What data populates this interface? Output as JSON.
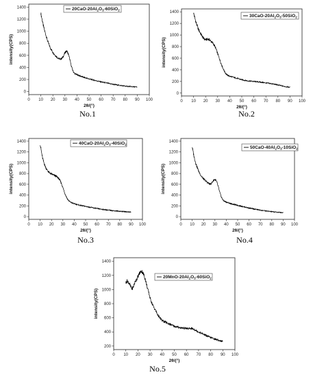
{
  "chart_data": [
    {
      "type": "line",
      "caption": "No.1",
      "legend": "20CaO-20Al2O3-60SiO2",
      "xlabel": "2θ/(°)",
      "ylabel": "intensity(CPS)",
      "xlim": [
        0,
        100
      ],
      "ylim": [
        -50,
        1450
      ],
      "xticks": [
        0,
        10,
        20,
        30,
        40,
        50,
        60,
        70,
        80,
        90,
        100
      ],
      "yticks": [
        0,
        200,
        400,
        600,
        800,
        1000,
        1200,
        1400
      ],
      "x": [
        10,
        11,
        12,
        13,
        14,
        15,
        16,
        17,
        18,
        20,
        22,
        24,
        25,
        26,
        27,
        28,
        29,
        30,
        31,
        32,
        33,
        34,
        35,
        36,
        37,
        38,
        40,
        45,
        50,
        55,
        60,
        65,
        70,
        75,
        80,
        85,
        90
      ],
      "y": [
        1300,
        1200,
        1100,
        1020,
        950,
        880,
        820,
        770,
        720,
        650,
        600,
        560,
        545,
        540,
        545,
        560,
        600,
        640,
        670,
        660,
        610,
        540,
        450,
        380,
        330,
        300,
        280,
        240,
        210,
        185,
        160,
        140,
        120,
        105,
        90,
        82,
        75
      ]
    },
    {
      "type": "line",
      "caption": "No.2",
      "legend": "30CaO-20Al2O3-50SiO2",
      "xlabel": "2θ/(°)",
      "ylabel": "intensity(CPS)",
      "xlim": [
        0,
        100
      ],
      "ylim": [
        -50,
        1450
      ],
      "xticks": [
        0,
        10,
        20,
        30,
        40,
        50,
        60,
        70,
        80,
        90,
        100
      ],
      "yticks": [
        0,
        200,
        400,
        600,
        800,
        1000,
        1200,
        1400
      ],
      "x": [
        10,
        11,
        12,
        13,
        14,
        15,
        16,
        17,
        18,
        19,
        20,
        21,
        22,
        23,
        24,
        25,
        26,
        27,
        28,
        29,
        30,
        31,
        32,
        33,
        34,
        35,
        36,
        37,
        38,
        40,
        45,
        50,
        55,
        60,
        65,
        70,
        75,
        80,
        85,
        90
      ],
      "y": [
        1380,
        1300,
        1220,
        1160,
        1100,
        1060,
        1020,
        985,
        950,
        930,
        920,
        925,
        930,
        920,
        905,
        880,
        860,
        830,
        790,
        740,
        680,
        620,
        560,
        500,
        450,
        400,
        360,
        330,
        310,
        290,
        260,
        230,
        210,
        200,
        190,
        175,
        160,
        140,
        115,
        100
      ]
    },
    {
      "type": "line",
      "caption": "No.3",
      "legend": "40CaO-20Al2O3-40SiO2",
      "xlabel": "2θ/(°)",
      "ylabel": "intensity(CPS)",
      "xlim": [
        0,
        100
      ],
      "ylim": [
        -50,
        1450
      ],
      "xticks": [
        0,
        10,
        20,
        30,
        40,
        50,
        60,
        70,
        80,
        90,
        100
      ],
      "yticks": [
        0,
        200,
        400,
        600,
        800,
        1000,
        1200,
        1400
      ],
      "x": [
        10,
        11,
        12,
        13,
        14,
        15,
        16,
        17,
        18,
        20,
        22,
        24,
        25,
        26,
        27,
        28,
        29,
        30,
        31,
        32,
        33,
        34,
        35,
        36,
        37,
        38,
        40,
        45,
        50,
        55,
        60,
        65,
        70,
        75,
        80,
        85,
        90
      ],
      "y": [
        1350,
        1220,
        1100,
        1020,
        960,
        910,
        870,
        840,
        815,
        790,
        770,
        750,
        735,
        715,
        690,
        650,
        600,
        540,
        480,
        420,
        370,
        330,
        300,
        280,
        265,
        255,
        240,
        210,
        190,
        170,
        150,
        135,
        120,
        110,
        100,
        92,
        85
      ]
    },
    {
      "type": "line",
      "caption": "No.4",
      "legend": "50CaO-40Al2O3-10SiO2",
      "xlabel": "2θ/(°)",
      "ylabel": "intensity(CPS)",
      "xlim": [
        0,
        100
      ],
      "ylim": [
        -50,
        1450
      ],
      "xticks": [
        0,
        10,
        20,
        30,
        40,
        50,
        60,
        70,
        80,
        90,
        100
      ],
      "yticks": [
        0,
        200,
        400,
        600,
        800,
        1000,
        1200,
        1400
      ],
      "x": [
        10,
        11,
        12,
        13,
        14,
        15,
        16,
        17,
        18,
        20,
        22,
        24,
        25,
        26,
        27,
        28,
        29,
        30,
        31,
        32,
        33,
        34,
        35,
        36,
        37,
        38,
        40,
        45,
        50,
        55,
        60,
        65,
        70,
        75,
        80,
        85,
        90
      ],
      "y": [
        1300,
        1180,
        1080,
        1000,
        940,
        880,
        830,
        790,
        750,
        700,
        660,
        625,
        610,
        605,
        620,
        650,
        680,
        690,
        670,
        620,
        550,
        470,
        400,
        350,
        310,
        290,
        270,
        235,
        210,
        185,
        160,
        140,
        120,
        105,
        92,
        82,
        75
      ]
    },
    {
      "type": "line",
      "caption": "No.5",
      "legend": "20MnO-20Al2O3-60SiO2",
      "xlabel": "2θ/(°)",
      "ylabel": "intensity(CPS)",
      "xlim": [
        0,
        100
      ],
      "ylim": [
        150,
        1450
      ],
      "xticks": [
        0,
        10,
        20,
        30,
        40,
        50,
        60,
        70,
        80,
        90,
        100
      ],
      "yticks": [
        200,
        400,
        600,
        800,
        1000,
        1200,
        1400
      ],
      "x": [
        10,
        11,
        12,
        13,
        14,
        15,
        16,
        17,
        18,
        19,
        20,
        21,
        22,
        23,
        24,
        25,
        26,
        27,
        28,
        29,
        30,
        31,
        32,
        33,
        34,
        35,
        36,
        38,
        40,
        45,
        50,
        55,
        60,
        62,
        64,
        66,
        68,
        70,
        75,
        80,
        85,
        90
      ],
      "y": [
        1100,
        1120,
        1110,
        1080,
        1040,
        1010,
        1030,
        1080,
        1120,
        1150,
        1180,
        1220,
        1250,
        1260,
        1240,
        1200,
        1150,
        1080,
        1010,
        950,
        880,
        830,
        790,
        750,
        720,
        690,
        650,
        600,
        560,
        520,
        480,
        460,
        450,
        445,
        450,
        440,
        420,
        400,
        360,
        320,
        290,
        265
      ]
    }
  ]
}
